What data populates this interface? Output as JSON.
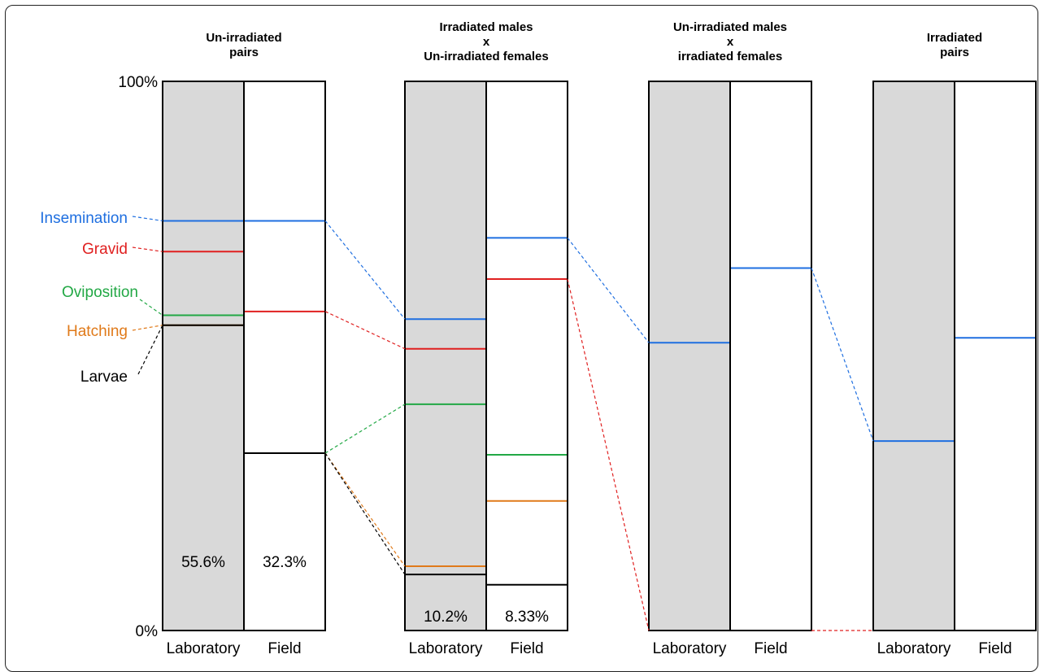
{
  "chart_data": {
    "type": "bar",
    "y_axis": {
      "top_label": "100%",
      "bottom_label": "0%",
      "ylim": [
        0,
        100
      ]
    },
    "stages": [
      {
        "key": "insemination",
        "label": "Insemination",
        "color": "#1f6fe0"
      },
      {
        "key": "gravid",
        "label": "Gravid",
        "color": "#e02020"
      },
      {
        "key": "oviposition",
        "label": "Oviposition",
        "color": "#22a845"
      },
      {
        "key": "hatching",
        "label": "Hatching",
        "color": "#e07a1a"
      },
      {
        "key": "larvae",
        "label": "Larvae",
        "color": "#000000"
      }
    ],
    "groups": [
      {
        "title_lines": [
          "Un-irradiated",
          "pairs"
        ],
        "bars": [
          {
            "label": "Laboratory",
            "shaded": true,
            "final_value_text": "55.6%",
            "values": {
              "insemination": 74.6,
              "gravid": 69.0,
              "oviposition": 57.4,
              "hatching": 55.6,
              "larvae": 55.6
            }
          },
          {
            "label": "Field",
            "shaded": false,
            "final_value_text": "32.3%",
            "values": {
              "insemination": 74.6,
              "gravid": 58.1,
              "oviposition": 32.3,
              "hatching": 32.3,
              "larvae": 32.3
            }
          }
        ]
      },
      {
        "title_lines": [
          "Irradiated males",
          "x",
          "Un-irradiated females"
        ],
        "bars": [
          {
            "label": "Laboratory",
            "shaded": true,
            "final_value_text": "10.2%",
            "values": {
              "insemination": 56.7,
              "gravid": 51.3,
              "oviposition": 41.2,
              "hatching": 11.7,
              "larvae": 10.2
            }
          },
          {
            "label": "Field",
            "shaded": false,
            "final_value_text": "8.33%",
            "values": {
              "insemination": 71.5,
              "gravid": 64.0,
              "oviposition": 32.0,
              "hatching": 23.6,
              "larvae": 8.33
            }
          }
        ]
      },
      {
        "title_lines": [
          "Un-irradiated males",
          "x",
          "irradiated females"
        ],
        "bars": [
          {
            "label": "Laboratory",
            "shaded": true,
            "final_value_text": "",
            "values": {
              "insemination": 52.4
            }
          },
          {
            "label": "Field",
            "shaded": false,
            "final_value_text": "",
            "values": {
              "insemination": 66.0
            }
          }
        ]
      },
      {
        "title_lines": [
          "Irradiated",
          "pairs"
        ],
        "bars": [
          {
            "label": "Laboratory",
            "shaded": true,
            "final_value_text": "",
            "values": {
              "insemination": 34.5
            }
          },
          {
            "label": "Field",
            "shaded": false,
            "final_value_text": "",
            "values": {
              "insemination": 53.3
            }
          }
        ]
      }
    ],
    "connectors": [
      {
        "stage": "insemination",
        "from": [
          0,
          1
        ],
        "to": [
          1,
          0
        ]
      },
      {
        "stage": "gravid",
        "from": [
          0,
          1
        ],
        "to": [
          1,
          0
        ]
      },
      {
        "stage": "oviposition",
        "from": [
          0,
          1
        ],
        "to": [
          1,
          0
        ]
      },
      {
        "stage": "hatching",
        "from": [
          0,
          1
        ],
        "to": [
          1,
          0
        ]
      },
      {
        "stage": "larvae",
        "from": [
          0,
          1
        ],
        "to": [
          1,
          0
        ]
      },
      {
        "stage": "insemination",
        "from": [
          1,
          1
        ],
        "to": [
          2,
          0
        ]
      },
      {
        "stage": "gravid",
        "from": [
          1,
          1
        ],
        "to": [
          2,
          0
        ],
        "to_value": 0
      },
      {
        "stage": "gravid",
        "from": [
          2,
          1
        ],
        "to": [
          3,
          0
        ],
        "from_value": 0,
        "to_value": 0
      },
      {
        "stage": "insemination",
        "from": [
          2,
          1
        ],
        "to": [
          3,
          0
        ]
      }
    ]
  }
}
